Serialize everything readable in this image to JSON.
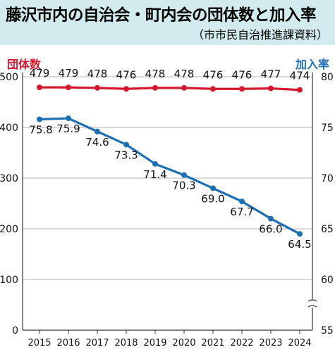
{
  "title": "藤沢市内の自治会・町内会の団体数と加入率",
  "subtitle": "（市市民自治推進課資料）",
  "chart_data": {
    "type": "line",
    "title": "藤沢市内の自治会・町内会の団体数と加入率",
    "subtitle": "（市市民自治推進課資料）",
    "categories": [
      "2015",
      "2016",
      "2017",
      "2018",
      "2019",
      "2020",
      "2021",
      "2022",
      "2023",
      "2024"
    ],
    "left_axis": {
      "label": "団体数",
      "ylim": [
        0,
        500
      ],
      "ticks": [
        "0",
        "100",
        "200",
        "300",
        "400",
        "500"
      ]
    },
    "right_axis": {
      "label": "加入率",
      "ylim": [
        55,
        80
      ],
      "ticks": [
        "55",
        "60",
        "65",
        "70",
        "75",
        "80"
      ],
      "axis_break": true
    },
    "series": [
      {
        "name": "団体数",
        "axis": "left",
        "color": "#d6182f",
        "values": [
          479,
          479,
          478,
          476,
          478,
          478,
          476,
          476,
          477,
          474
        ],
        "labels": [
          "479",
          "479",
          "478",
          "476",
          "478",
          "478",
          "476",
          "476",
          "477",
          "474"
        ]
      },
      {
        "name": "加入率",
        "axis": "right",
        "color": "#1d6fb4",
        "values": [
          75.8,
          75.9,
          74.6,
          73.3,
          71.4,
          70.3,
          69.0,
          67.7,
          66.0,
          64.5
        ],
        "labels": [
          "75.8",
          "75.9",
          "74.6",
          "73.3",
          "71.4",
          "70.3",
          "69.0",
          "67.7",
          "66.0",
          "64.5"
        ]
      }
    ],
    "grid": true
  }
}
